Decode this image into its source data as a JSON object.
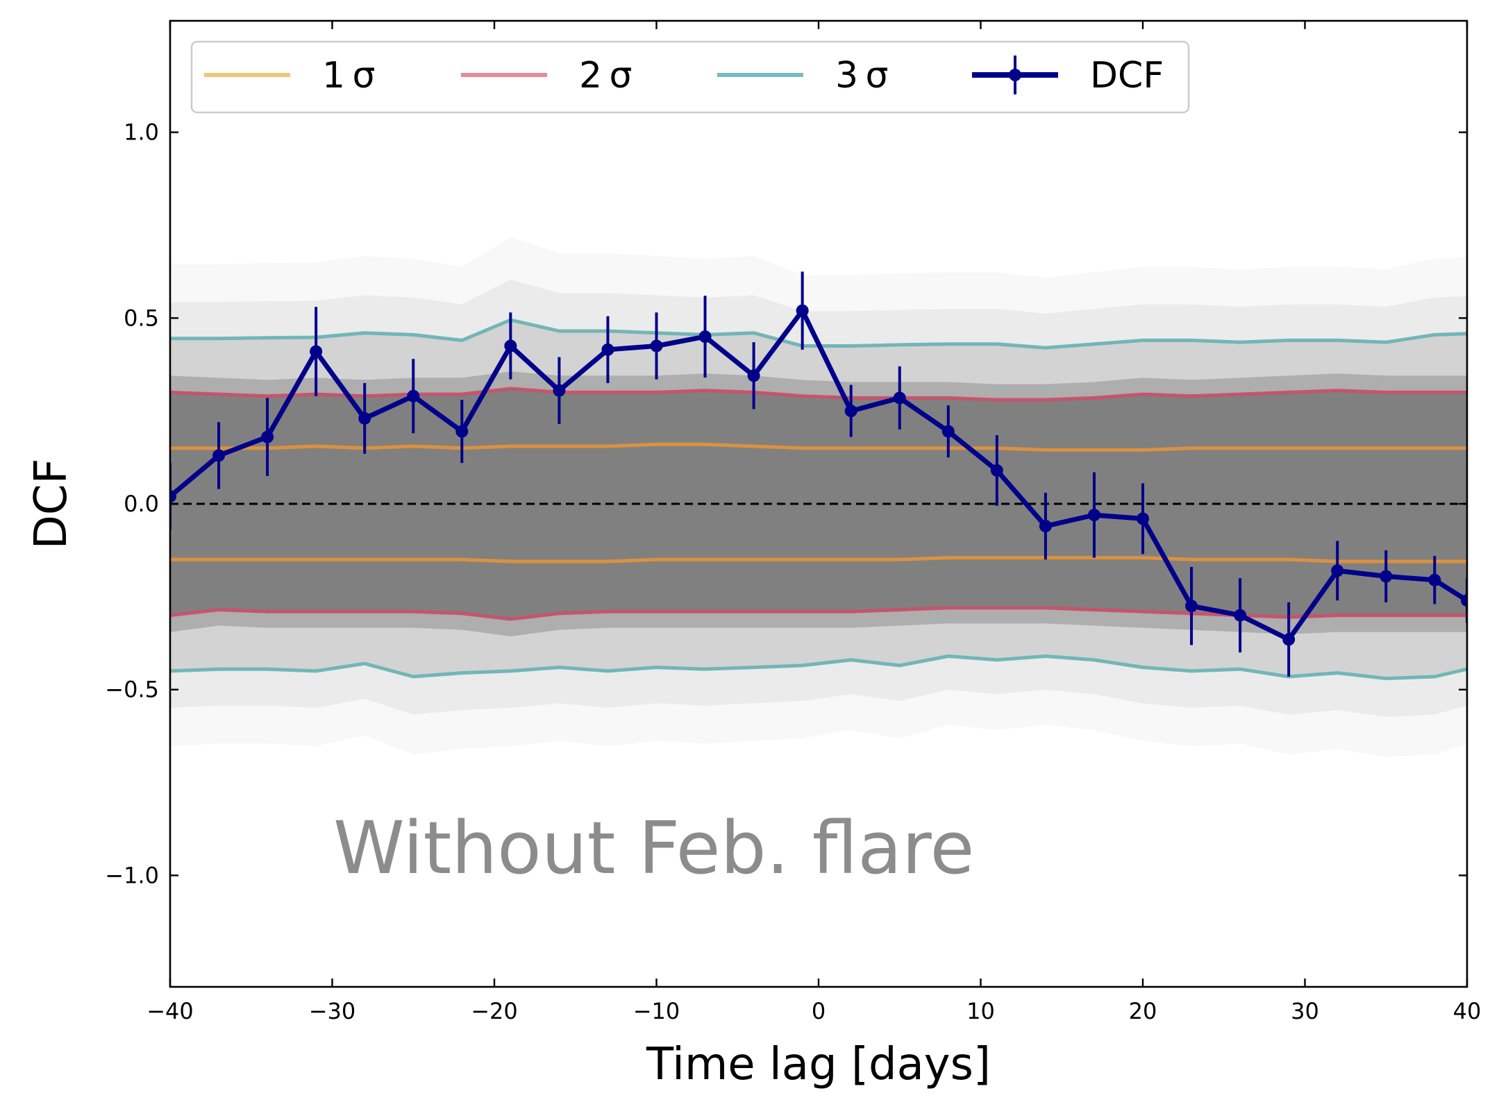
{
  "chart_data": {
    "type": "line",
    "xlabel": "Time lag [days]",
    "ylabel": "DCF",
    "xlim": [
      -40,
      40
    ],
    "ylim": [
      -1.3,
      1.3
    ],
    "xticks": [
      -40,
      -30,
      -20,
      -10,
      0,
      10,
      20,
      30,
      40
    ],
    "yticks": [
      -1.0,
      -0.5,
      0.0,
      0.5,
      1.0
    ],
    "xtick_labels": [
      "−40",
      "−30",
      "−20",
      "−10",
      "0",
      "10",
      "20",
      "30",
      "40"
    ],
    "ytick_labels": [
      "−1.0",
      "−0.5",
      "0.0",
      "0.5",
      "1.0"
    ],
    "grid": false,
    "legend_position": "top",
    "annotation": {
      "text": "Without Feb. flare",
      "color": "#8c8c8c"
    },
    "zero_line": {
      "y": 0.0,
      "style": "dashed",
      "color": "#000000"
    },
    "simulation_band": {
      "color": "#808080"
    },
    "sigma_levels": [
      {
        "name": "1 σ",
        "color": "#f4c47a",
        "plot_color": "#e0913a",
        "x": [
          -40,
          -37,
          -34,
          -31,
          -28,
          -25,
          -22,
          -19,
          -16,
          -13,
          -10,
          -7,
          -4,
          -1,
          2,
          5,
          8,
          11,
          14,
          17,
          20,
          23,
          26,
          29,
          32,
          35,
          38,
          40
        ],
        "upper": [
          0.15,
          0.15,
          0.15,
          0.155,
          0.15,
          0.155,
          0.15,
          0.155,
          0.155,
          0.155,
          0.16,
          0.16,
          0.155,
          0.15,
          0.15,
          0.15,
          0.15,
          0.15,
          0.145,
          0.145,
          0.145,
          0.15,
          0.15,
          0.15,
          0.15,
          0.15,
          0.15,
          0.15
        ],
        "lower": [
          -0.15,
          -0.15,
          -0.15,
          -0.15,
          -0.15,
          -0.15,
          -0.15,
          -0.155,
          -0.155,
          -0.155,
          -0.15,
          -0.15,
          -0.15,
          -0.15,
          -0.15,
          -0.15,
          -0.145,
          -0.145,
          -0.145,
          -0.145,
          -0.145,
          -0.15,
          -0.15,
          -0.15,
          -0.155,
          -0.155,
          -0.155,
          -0.155
        ]
      },
      {
        "name": "2 σ",
        "color": "#e88a9c",
        "plot_color": "#c8506a",
        "x": [
          -40,
          -37,
          -34,
          -31,
          -28,
          -25,
          -22,
          -19,
          -16,
          -13,
          -10,
          -7,
          -4,
          -1,
          2,
          5,
          8,
          11,
          14,
          17,
          20,
          23,
          26,
          29,
          32,
          35,
          38,
          40
        ],
        "upper": [
          0.3,
          0.295,
          0.29,
          0.295,
          0.29,
          0.295,
          0.295,
          0.31,
          0.3,
          0.3,
          0.3,
          0.305,
          0.3,
          0.29,
          0.285,
          0.285,
          0.285,
          0.28,
          0.28,
          0.285,
          0.295,
          0.29,
          0.295,
          0.3,
          0.305,
          0.3,
          0.3,
          0.3
        ],
        "lower": [
          -0.3,
          -0.285,
          -0.29,
          -0.29,
          -0.29,
          -0.29,
          -0.295,
          -0.31,
          -0.295,
          -0.29,
          -0.29,
          -0.29,
          -0.29,
          -0.29,
          -0.29,
          -0.285,
          -0.28,
          -0.28,
          -0.28,
          -0.285,
          -0.29,
          -0.295,
          -0.3,
          -0.305,
          -0.3,
          -0.3,
          -0.3,
          -0.3
        ]
      },
      {
        "name": "3 σ",
        "color": "#78bcbc",
        "plot_color": "#6db3b3",
        "x": [
          -40,
          -37,
          -34,
          -31,
          -28,
          -25,
          -22,
          -19,
          -16,
          -13,
          -10,
          -7,
          -4,
          -1,
          2,
          5,
          8,
          11,
          14,
          17,
          20,
          23,
          26,
          29,
          32,
          35,
          38,
          40
        ],
        "upper": [
          0.445,
          0.445,
          0.447,
          0.448,
          0.46,
          0.455,
          0.44,
          0.495,
          0.465,
          0.465,
          0.46,
          0.455,
          0.46,
          0.425,
          0.425,
          0.428,
          0.43,
          0.43,
          0.42,
          0.43,
          0.44,
          0.44,
          0.435,
          0.44,
          0.44,
          0.435,
          0.455,
          0.458
        ],
        "lower": [
          -0.45,
          -0.445,
          -0.445,
          -0.45,
          -0.43,
          -0.465,
          -0.455,
          -0.45,
          -0.44,
          -0.45,
          -0.44,
          -0.445,
          -0.44,
          -0.435,
          -0.42,
          -0.435,
          -0.41,
          -0.42,
          -0.41,
          -0.42,
          -0.44,
          -0.45,
          -0.445,
          -0.465,
          -0.455,
          -0.47,
          -0.465,
          -0.445
        ]
      }
    ],
    "series": [
      {
        "name": "DCF",
        "color": "#00008b",
        "x": [
          -40,
          -37,
          -34,
          -31,
          -28,
          -25,
          -22,
          -19,
          -16,
          -13,
          -10,
          -7,
          -4,
          -1,
          2,
          5,
          8,
          11,
          14,
          17,
          20,
          23,
          26,
          29,
          32,
          35,
          38,
          40
        ],
        "y": [
          0.02,
          0.13,
          0.18,
          0.41,
          0.23,
          0.29,
          0.195,
          0.425,
          0.305,
          0.415,
          0.425,
          0.45,
          0.345,
          0.52,
          0.25,
          0.285,
          0.195,
          0.09,
          -0.06,
          -0.03,
          -0.04,
          -0.275,
          -0.3,
          -0.365,
          -0.18,
          -0.195,
          -0.205,
          -0.26
        ],
        "yerr": [
          0.09,
          0.09,
          0.105,
          0.12,
          0.095,
          0.1,
          0.085,
          0.09,
          0.09,
          0.09,
          0.09,
          0.11,
          0.09,
          0.105,
          0.07,
          0.085,
          0.07,
          0.095,
          0.09,
          0.115,
          0.095,
          0.105,
          0.1,
          0.1,
          0.08,
          0.07,
          0.065,
          0.06
        ]
      }
    ]
  }
}
